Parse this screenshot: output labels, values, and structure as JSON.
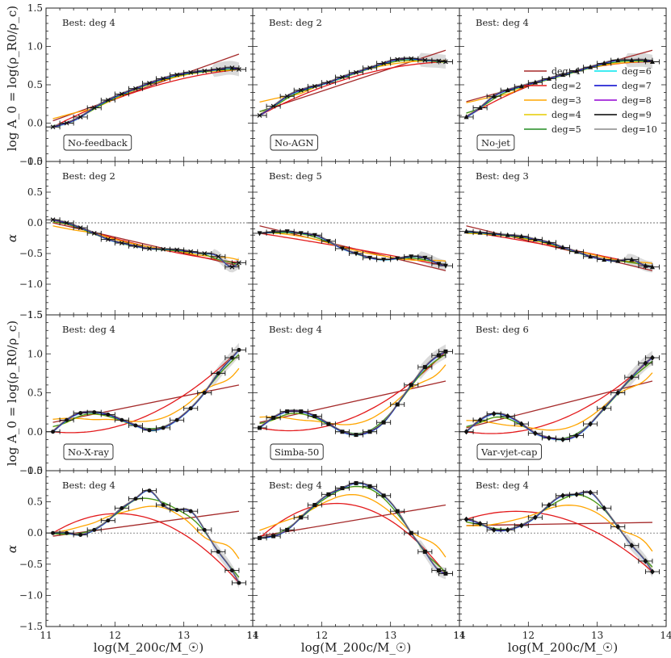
{
  "figure": {
    "xlabel": "log(M_200c/M_☉)",
    "ylabel_top": "log A_0 = log(ρ_R0/ρ_c)",
    "ylabel_alpha": "α"
  },
  "legend": {
    "entries": [
      {
        "label": "deg=1",
        "color": "#a52a2a"
      },
      {
        "label": "deg=2",
        "color": "#e31a1c"
      },
      {
        "label": "deg=3",
        "color": "#ffa500"
      },
      {
        "label": "deg=4",
        "color": "#e6cc00"
      },
      {
        "label": "deg=5",
        "color": "#228b22"
      },
      {
        "label": "deg=6",
        "color": "#00e5ee"
      },
      {
        "label": "deg=7",
        "color": "#0000cd"
      },
      {
        "label": "deg=8",
        "color": "#9400d3"
      },
      {
        "label": "deg=9",
        "color": "#000000"
      },
      {
        "label": "deg=10",
        "color": "#888888"
      }
    ]
  },
  "chart_data": [
    {
      "type": "line",
      "row": 0,
      "col": 0,
      "quantity": "logA0",
      "best": "Best: deg 4",
      "label": "No-feedback",
      "marker": "x",
      "x": [
        11.1,
        11.3,
        11.5,
        11.7,
        11.9,
        12.1,
        12.3,
        12.5,
        12.7,
        12.9,
        13.1,
        13.3,
        13.5,
        13.7,
        13.8
      ],
      "y": [
        -0.05,
        0.0,
        0.08,
        0.2,
        0.3,
        0.38,
        0.45,
        0.52,
        0.58,
        0.63,
        0.66,
        0.68,
        0.7,
        0.72,
        0.7
      ],
      "linear": [
        0.03,
        0.9
      ],
      "quadratic_mid": 0.45,
      "xlim": [
        11,
        14
      ],
      "ylim": [
        -0.5,
        1.5
      ]
    },
    {
      "type": "line",
      "row": 0,
      "col": 1,
      "quantity": "logA0",
      "best": "Best: deg 2",
      "label": "No-AGN",
      "marker": "x",
      "x": [
        11.1,
        11.3,
        11.5,
        11.7,
        11.9,
        12.1,
        12.3,
        12.5,
        12.7,
        12.9,
        13.1,
        13.3,
        13.5,
        13.7,
        13.8
      ],
      "y": [
        0.1,
        0.22,
        0.35,
        0.43,
        0.48,
        0.53,
        0.6,
        0.66,
        0.72,
        0.78,
        0.83,
        0.84,
        0.82,
        0.81,
        0.8
      ],
      "linear": [
        0.15,
        0.95
      ],
      "quadratic_mid": 0.6,
      "xlim": [
        11,
        14
      ],
      "ylim": [
        -0.5,
        1.5
      ]
    },
    {
      "type": "line",
      "row": 0,
      "col": 2,
      "quantity": "logA0",
      "best": "Best: deg 4",
      "label": "No-jet",
      "marker": "triangle",
      "x": [
        11.1,
        11.3,
        11.5,
        11.7,
        11.9,
        12.1,
        12.3,
        12.5,
        12.7,
        12.9,
        13.1,
        13.3,
        13.5,
        13.7,
        13.8
      ],
      "y": [
        0.08,
        0.2,
        0.35,
        0.43,
        0.48,
        0.53,
        0.58,
        0.63,
        0.68,
        0.73,
        0.78,
        0.82,
        0.82,
        0.82,
        0.8
      ],
      "linear": [
        0.28,
        0.95
      ],
      "quadratic_mid": 0.62,
      "xlim": [
        11,
        14
      ],
      "ylim": [
        -0.5,
        1.5
      ]
    },
    {
      "type": "line",
      "row": 1,
      "col": 0,
      "quantity": "alpha",
      "best": "Best: deg 2",
      "label": "",
      "marker": "x",
      "x": [
        11.1,
        11.3,
        11.5,
        11.7,
        11.9,
        12.1,
        12.3,
        12.5,
        12.7,
        12.9,
        13.1,
        13.3,
        13.5,
        13.7,
        13.8
      ],
      "y": [
        0.05,
        0.0,
        -0.08,
        -0.17,
        -0.27,
        -0.33,
        -0.38,
        -0.42,
        -0.43,
        -0.44,
        -0.47,
        -0.5,
        -0.55,
        -0.72,
        -0.65
      ],
      "linear": [
        0.0,
        -0.7
      ],
      "quadratic_mid": -0.38,
      "xlim": [
        11,
        14
      ],
      "ylim": [
        -1.5,
        1.0
      ]
    },
    {
      "type": "line",
      "row": 1,
      "col": 1,
      "quantity": "alpha",
      "best": "Best: deg 5",
      "label": "",
      "marker": "triangle-down",
      "x": [
        11.1,
        11.3,
        11.5,
        11.7,
        11.9,
        12.1,
        12.3,
        12.5,
        12.7,
        12.9,
        13.1,
        13.3,
        13.5,
        13.7,
        13.8
      ],
      "y": [
        -0.17,
        -0.15,
        -0.14,
        -0.17,
        -0.2,
        -0.3,
        -0.42,
        -0.5,
        -0.57,
        -0.6,
        -0.58,
        -0.55,
        -0.57,
        -0.67,
        -0.7
      ],
      "linear": [
        -0.05,
        -0.78
      ],
      "quadratic_mid": -0.42,
      "xlim": [
        11,
        14
      ],
      "ylim": [
        -1.5,
        1.0
      ]
    },
    {
      "type": "line",
      "row": 1,
      "col": 2,
      "quantity": "alpha",
      "best": "Best: deg 3",
      "label": "",
      "marker": "triangle",
      "x": [
        11.1,
        11.3,
        11.5,
        11.7,
        11.9,
        12.1,
        12.3,
        12.5,
        12.7,
        12.9,
        13.1,
        13.3,
        13.5,
        13.7,
        13.8
      ],
      "y": [
        -0.14,
        -0.16,
        -0.18,
        -0.2,
        -0.22,
        -0.27,
        -0.32,
        -0.4,
        -0.47,
        -0.55,
        -0.6,
        -0.62,
        -0.6,
        -0.7,
        -0.72
      ],
      "linear": [
        -0.05,
        -0.78
      ],
      "quadratic_mid": -0.4,
      "xlim": [
        11,
        14
      ],
      "ylim": [
        -1.5,
        1.0
      ]
    },
    {
      "type": "line",
      "row": 2,
      "col": 0,
      "quantity": "logA0",
      "best": "Best: deg 4",
      "label": "No-X-ray",
      "marker": "circle",
      "x": [
        11.1,
        11.3,
        11.5,
        11.7,
        11.9,
        12.1,
        12.3,
        12.5,
        12.7,
        12.9,
        13.1,
        13.3,
        13.5,
        13.7,
        13.8
      ],
      "y": [
        0.0,
        0.15,
        0.24,
        0.25,
        0.22,
        0.15,
        0.08,
        0.02,
        0.05,
        0.15,
        0.3,
        0.5,
        0.75,
        0.95,
        1.05
      ],
      "linear": [
        0.12,
        0.6
      ],
      "quadratic_mid": 0.2,
      "xlim": [
        11,
        14
      ],
      "ylim": [
        -0.5,
        1.5
      ]
    },
    {
      "type": "line",
      "row": 2,
      "col": 1,
      "quantity": "logA0",
      "best": "Best: deg 4",
      "label": "Simba-50",
      "marker": "square",
      "x": [
        11.1,
        11.3,
        11.5,
        11.7,
        11.9,
        12.1,
        12.3,
        12.5,
        12.7,
        12.9,
        13.1,
        13.3,
        13.5,
        13.7,
        13.8
      ],
      "y": [
        0.05,
        0.18,
        0.26,
        0.26,
        0.2,
        0.1,
        0.0,
        -0.04,
        0.0,
        0.12,
        0.35,
        0.6,
        0.83,
        0.98,
        1.03
      ],
      "linear": [
        0.12,
        0.65
      ],
      "quadratic_mid": 0.18,
      "xlim": [
        11,
        14
      ],
      "ylim": [
        -0.5,
        1.5
      ]
    },
    {
      "type": "line",
      "row": 2,
      "col": 2,
      "quantity": "logA0",
      "best": "Best: deg 6",
      "label": "Var-vjet-cap",
      "marker": "diamond",
      "x": [
        11.1,
        11.3,
        11.5,
        11.7,
        11.9,
        12.1,
        12.3,
        12.5,
        12.7,
        12.9,
        13.1,
        13.3,
        13.5,
        13.7,
        13.8
      ],
      "y": [
        0.0,
        0.15,
        0.23,
        0.2,
        0.1,
        -0.02,
        -0.08,
        -0.1,
        -0.05,
        0.1,
        0.3,
        0.5,
        0.7,
        0.88,
        0.95
      ],
      "linear": [
        0.05,
        0.65
      ],
      "quadratic_mid": 0.15,
      "xlim": [
        11,
        14
      ],
      "ylim": [
        -0.5,
        1.5
      ]
    },
    {
      "type": "line",
      "row": 3,
      "col": 0,
      "quantity": "alpha",
      "best": "Best: deg 4",
      "label": "",
      "marker": "circle",
      "x": [
        11.1,
        11.3,
        11.5,
        11.7,
        11.9,
        12.1,
        12.3,
        12.5,
        12.7,
        12.9,
        13.1,
        13.3,
        13.5,
        13.7,
        13.8
      ],
      "y": [
        0.0,
        0.0,
        -0.03,
        0.05,
        0.2,
        0.4,
        0.55,
        0.68,
        0.45,
        0.37,
        0.35,
        0.05,
        -0.3,
        -0.6,
        -0.8
      ],
      "linear": [
        -0.05,
        0.35
      ],
      "quadratic_mid": 0.25,
      "xlim": [
        11,
        14
      ],
      "ylim": [
        -1.5,
        1.0
      ]
    },
    {
      "type": "line",
      "row": 3,
      "col": 1,
      "quantity": "alpha",
      "best": "Best: deg 4",
      "label": "",
      "marker": "square",
      "x": [
        11.1,
        11.3,
        11.5,
        11.7,
        11.9,
        12.1,
        12.3,
        12.5,
        12.7,
        12.9,
        13.1,
        13.3,
        13.5,
        13.7,
        13.8
      ],
      "y": [
        -0.08,
        -0.05,
        0.05,
        0.25,
        0.45,
        0.62,
        0.72,
        0.8,
        0.75,
        0.6,
        0.35,
        0.0,
        -0.3,
        -0.6,
        -0.65
      ],
      "linear": [
        -0.05,
        0.45
      ],
      "quadratic_mid": 0.45,
      "xlim": [
        11,
        14
      ],
      "ylim": [
        -1.5,
        1.0
      ]
    },
    {
      "type": "line",
      "row": 3,
      "col": 2,
      "quantity": "alpha",
      "best": "Best: deg 4",
      "label": "",
      "marker": "diamond",
      "x": [
        11.1,
        11.3,
        11.5,
        11.7,
        11.9,
        12.1,
        12.3,
        12.5,
        12.7,
        12.9,
        13.1,
        13.3,
        13.5,
        13.7,
        13.8
      ],
      "y": [
        0.22,
        0.15,
        0.05,
        0.05,
        0.12,
        0.25,
        0.45,
        0.6,
        0.62,
        0.65,
        0.4,
        0.1,
        -0.2,
        -0.45,
        -0.62
      ],
      "linear": [
        0.12,
        0.17
      ],
      "quadratic_mid": 0.25,
      "xlim": [
        11,
        14
      ],
      "ylim": [
        -1.5,
        1.0
      ]
    }
  ]
}
